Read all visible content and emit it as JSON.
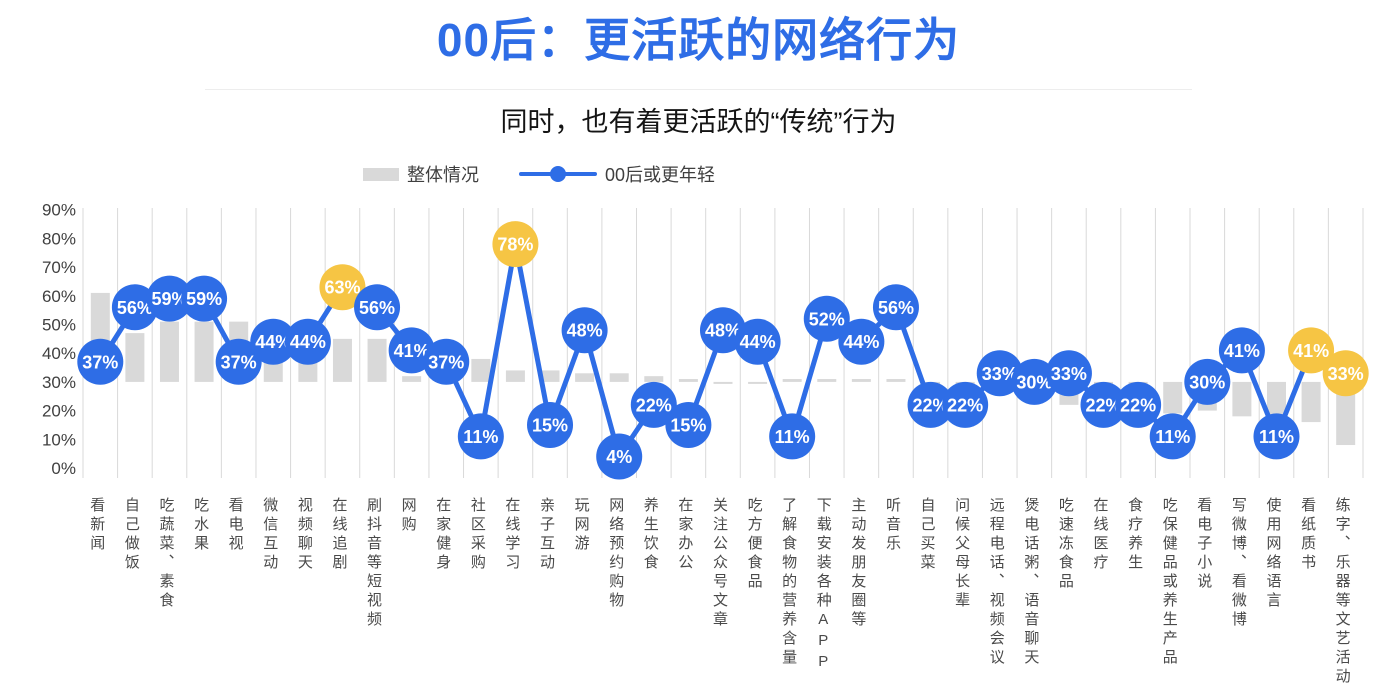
{
  "title": "00后：更活跃的网络行为",
  "subtitle": "同时，也有着更活跃的“传统”行为",
  "legend": {
    "overall_label": "整体情况",
    "line_label": "00后或更年轻"
  },
  "colors": {
    "accent_blue": "#2e6de6",
    "highlight_yellow": "#f6c544",
    "bar_gray": "#d9d9d9",
    "grid_gray": "#d9d9d9",
    "axis_text": "#404040",
    "title_blue": "#2e6de6"
  },
  "chart_data": {
    "type": "bar",
    "subtype": "combo-bar-line",
    "title": "00后：更活跃的网络行为",
    "subtitle": "同时，也有着更活跃的“传统”行为",
    "xlabel": "",
    "ylabel": "",
    "ylim": [
      0,
      90
    ],
    "ytick_step": 10,
    "ytick_format": "percent",
    "grid": "vertical-only",
    "legend_position": "top",
    "categories": [
      "看新闻",
      "自己做饭",
      "吃蔬菜、素食",
      "吃水果",
      "看电视",
      "微信互动",
      "视频聊天",
      "在线追剧",
      "刷抖音等短视频",
      "网购",
      "在家健身",
      "社区采购",
      "在线学习",
      "亲子互动",
      "玩网游",
      "网络预约购物",
      "养生饮食",
      "在家办公",
      "关注公众号文章",
      "吃方便食品",
      "了解食物的营养含量",
      "下载安装各种APP",
      "主动发朋友圈等",
      "听音乐",
      "自己买菜",
      "问候父母长辈",
      "远程电话、视频会议",
      "煲电话粥、语音聊天",
      "吃速冻食品",
      "在线医疗",
      "食疗养生",
      "吃保健品或养生产品",
      "看电子小说",
      "写微博、看微博",
      "使用网络语言",
      "看纸质书",
      "练字、乐器等文艺活动"
    ],
    "series": [
      {
        "name": "整体情况",
        "type": "bar",
        "color": "#d9d9d9",
        "bar_baseline": 30,
        "values_estimated": true,
        "values": [
          61,
          47,
          51,
          51,
          51,
          45,
          45,
          45,
          45,
          32,
          34,
          38,
          34,
          34,
          33,
          33,
          32,
          31,
          30,
          30,
          31,
          31,
          31,
          31,
          26,
          27,
          31,
          28,
          22,
          21,
          21,
          19,
          20,
          18,
          17,
          16,
          8
        ]
      },
      {
        "name": "00后或更年轻",
        "type": "line",
        "color": "#2e6de6",
        "marker_color": "#2e6de6",
        "highlight_color": "#f6c544",
        "highlight_indices": [
          7,
          12,
          35,
          36
        ],
        "data_labels": [
          "37%",
          "56%",
          "59%",
          "59%",
          "37%",
          "44%",
          "44%",
          "63%",
          "56%",
          "41%",
          "37%",
          "11%",
          "78%",
          "15%",
          "48%",
          "4%",
          "22%",
          "15%",
          "48%",
          "44%",
          "11%",
          "52%",
          "44%",
          "56%",
          "22%",
          "22%",
          "33%",
          "30%",
          "33%",
          "22%",
          "22%",
          "11%",
          "30%",
          "41%",
          "11%",
          "41%",
          "33%"
        ],
        "values": [
          37,
          56,
          59,
          59,
          37,
          44,
          44,
          63,
          56,
          41,
          37,
          11,
          78,
          15,
          48,
          4,
          22,
          15,
          48,
          44,
          11,
          52,
          44,
          56,
          22,
          22,
          33,
          30,
          33,
          22,
          22,
          11,
          30,
          41,
          11,
          41,
          33
        ]
      }
    ]
  }
}
